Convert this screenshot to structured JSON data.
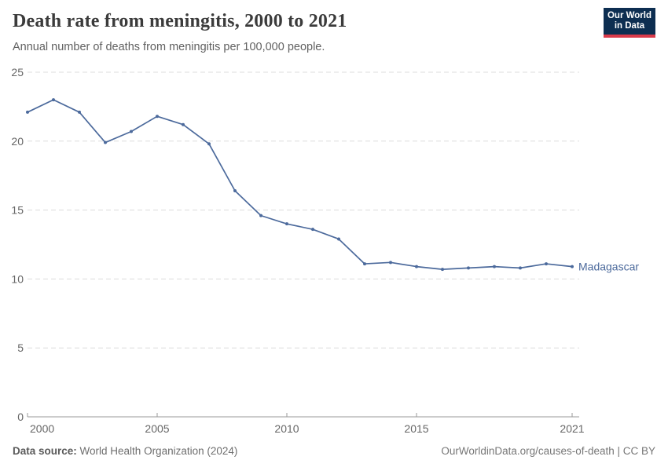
{
  "header": {
    "title": "Death rate from meningitis, 2000 to 2021",
    "subtitle": "Annual number of deaths from meningitis per 100,000 people.",
    "logo": {
      "line1": "Our World",
      "line2": "in Data",
      "bg_color": "#0d2e51",
      "accent_color": "#d93a4a"
    }
  },
  "chart_data": {
    "type": "line",
    "title": "Death rate from meningitis, 2000 to 2021",
    "xlabel": "",
    "ylabel": "",
    "x": [
      2000,
      2001,
      2002,
      2003,
      2004,
      2005,
      2006,
      2007,
      2008,
      2009,
      2010,
      2011,
      2012,
      2013,
      2014,
      2015,
      2016,
      2017,
      2018,
      2019,
      2020,
      2021
    ],
    "series": [
      {
        "name": "Madagascar",
        "color": "#4c6a9c",
        "values": [
          22.1,
          23.0,
          22.1,
          19.9,
          20.7,
          21.8,
          21.2,
          19.8,
          16.4,
          14.6,
          14.0,
          13.6,
          12.9,
          11.1,
          11.2,
          10.9,
          10.7,
          10.8,
          10.9,
          10.8,
          11.1,
          10.9
        ]
      }
    ],
    "ylim": [
      0,
      25
    ],
    "yticks": [
      0,
      5,
      10,
      15,
      20,
      25
    ],
    "xticks": [
      2000,
      2005,
      2010,
      2015,
      2021
    ],
    "grid": "horizontal-dashed",
    "legend_position": "end-of-line-label",
    "end_label": "Madagascar",
    "colors": {
      "gridline": "#dcdcdc",
      "axis": "#9a9a9a",
      "tick_label": "#666666"
    }
  },
  "footer": {
    "datasource_label": "Data source:",
    "datasource_value": " World Health Organization (2024)",
    "attribution": "OurWorldinData.org/causes-of-death | CC BY"
  }
}
